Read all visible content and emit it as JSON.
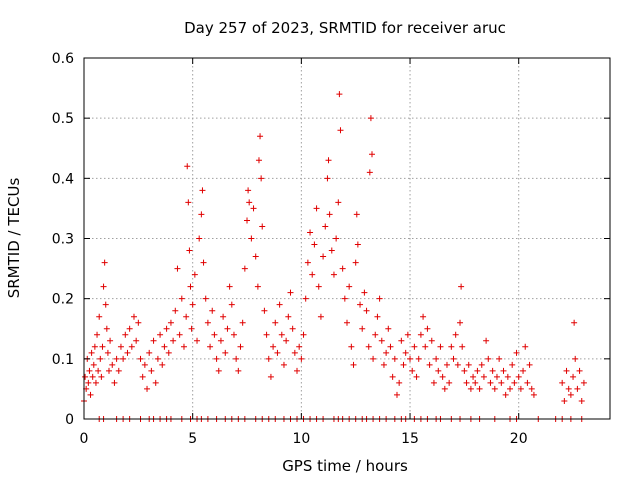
{
  "chart_data": {
    "type": "scatter",
    "title": "Day 257 of 2023, SRMTID for receiver aruc",
    "xlabel": "GPS time / hours",
    "ylabel": "SRMTID / TECUs",
    "xlim": [
      0,
      24.2
    ],
    "ylim": [
      0,
      0.6
    ],
    "x_ticks": [
      0,
      5,
      10,
      15,
      20
    ],
    "x_tick_labels": [
      "0",
      "5",
      "10",
      "15",
      "20"
    ],
    "y_ticks": [
      0,
      0.1,
      0.2,
      0.3,
      0.4,
      0.5,
      0.6
    ],
    "y_tick_labels": [
      "0",
      "0.1",
      "0.2",
      "0.3",
      "0.4",
      "0.5",
      "0.6"
    ],
    "grid": true,
    "marker": "plus",
    "colors": {
      "series": "#e00000"
    },
    "series": [
      {
        "name": "SRMTID",
        "points": [
          [
            0.0,
            0.03
          ],
          [
            0.05,
            0.07
          ],
          [
            0.1,
            0.05
          ],
          [
            0.15,
            0.1
          ],
          [
            0.2,
            0.06
          ],
          [
            0.25,
            0.08
          ],
          [
            0.3,
            0.04
          ],
          [
            0.35,
            0.11
          ],
          [
            0.4,
            0.07
          ],
          [
            0.45,
            0.09
          ],
          [
            0.5,
            0.12
          ],
          [
            0.55,
            0.06
          ],
          [
            0.6,
            0.14
          ],
          [
            0.65,
            0.08
          ],
          [
            0.7,
            0.17
          ],
          [
            0.75,
            0.1
          ],
          [
            0.8,
            0.07
          ],
          [
            0.85,
            0.12
          ],
          [
            0.9,
            0.22
          ],
          [
            0.95,
            0.26
          ],
          [
            1.0,
            0.19
          ],
          [
            1.05,
            0.15
          ],
          [
            1.1,
            0.11
          ],
          [
            1.15,
            0.08
          ],
          [
            1.2,
            0.13
          ],
          [
            1.3,
            0.09
          ],
          [
            1.4,
            0.06
          ],
          [
            1.5,
            0.1
          ],
          [
            1.6,
            0.08
          ],
          [
            1.7,
            0.12
          ],
          [
            1.8,
            0.1
          ],
          [
            1.9,
            0.14
          ],
          [
            2.0,
            0.11
          ],
          [
            2.1,
            0.15
          ],
          [
            2.2,
            0.12
          ],
          [
            2.3,
            0.17
          ],
          [
            2.4,
            0.13
          ],
          [
            2.5,
            0.16
          ],
          [
            2.6,
            0.1
          ],
          [
            2.7,
            0.07
          ],
          [
            2.8,
            0.09
          ],
          [
            2.9,
            0.05
          ],
          [
            3.0,
            0.11
          ],
          [
            3.1,
            0.08
          ],
          [
            3.2,
            0.13
          ],
          [
            3.3,
            0.06
          ],
          [
            3.4,
            0.1
          ],
          [
            3.5,
            0.14
          ],
          [
            3.6,
            0.09
          ],
          [
            3.7,
            0.12
          ],
          [
            3.8,
            0.15
          ],
          [
            3.9,
            0.11
          ],
          [
            4.0,
            0.16
          ],
          [
            4.1,
            0.13
          ],
          [
            4.2,
            0.18
          ],
          [
            4.3,
            0.25
          ],
          [
            4.4,
            0.14
          ],
          [
            4.5,
            0.2
          ],
          [
            4.6,
            0.12
          ],
          [
            4.7,
            0.17
          ],
          [
            4.75,
            0.42
          ],
          [
            4.8,
            0.36
          ],
          [
            4.85,
            0.28
          ],
          [
            4.9,
            0.22
          ],
          [
            4.95,
            0.15
          ],
          [
            5.0,
            0.19
          ],
          [
            5.1,
            0.24
          ],
          [
            5.2,
            0.13
          ],
          [
            5.3,
            0.3
          ],
          [
            5.4,
            0.34
          ],
          [
            5.45,
            0.38
          ],
          [
            5.5,
            0.26
          ],
          [
            5.6,
            0.2
          ],
          [
            5.7,
            0.16
          ],
          [
            5.8,
            0.12
          ],
          [
            5.9,
            0.18
          ],
          [
            6.0,
            0.14
          ],
          [
            6.1,
            0.1
          ],
          [
            6.2,
            0.08
          ],
          [
            6.3,
            0.13
          ],
          [
            6.4,
            0.17
          ],
          [
            6.5,
            0.11
          ],
          [
            6.6,
            0.15
          ],
          [
            6.7,
            0.22
          ],
          [
            6.8,
            0.19
          ],
          [
            6.9,
            0.14
          ],
          [
            7.0,
            0.1
          ],
          [
            7.1,
            0.08
          ],
          [
            7.2,
            0.12
          ],
          [
            7.3,
            0.16
          ],
          [
            7.4,
            0.25
          ],
          [
            7.5,
            0.33
          ],
          [
            7.55,
            0.38
          ],
          [
            7.6,
            0.36
          ],
          [
            7.7,
            0.3
          ],
          [
            7.8,
            0.35
          ],
          [
            7.9,
            0.27
          ],
          [
            8.0,
            0.22
          ],
          [
            8.05,
            0.43
          ],
          [
            8.1,
            0.47
          ],
          [
            8.15,
            0.4
          ],
          [
            8.2,
            0.32
          ],
          [
            8.3,
            0.18
          ],
          [
            8.4,
            0.14
          ],
          [
            8.5,
            0.1
          ],
          [
            8.6,
            0.07
          ],
          [
            8.7,
            0.12
          ],
          [
            8.8,
            0.16
          ],
          [
            8.9,
            0.11
          ],
          [
            9.0,
            0.19
          ],
          [
            9.1,
            0.14
          ],
          [
            9.2,
            0.09
          ],
          [
            9.3,
            0.13
          ],
          [
            9.4,
            0.17
          ],
          [
            9.5,
            0.21
          ],
          [
            9.6,
            0.15
          ],
          [
            9.7,
            0.11
          ],
          [
            9.8,
            0.08
          ],
          [
            9.9,
            0.12
          ],
          [
            10.0,
            0.1
          ],
          [
            10.1,
            0.14
          ],
          [
            10.2,
            0.2
          ],
          [
            10.3,
            0.26
          ],
          [
            10.4,
            0.31
          ],
          [
            10.5,
            0.24
          ],
          [
            10.6,
            0.29
          ],
          [
            10.7,
            0.35
          ],
          [
            10.8,
            0.22
          ],
          [
            10.9,
            0.17
          ],
          [
            11.0,
            0.27
          ],
          [
            11.1,
            0.32
          ],
          [
            11.2,
            0.4
          ],
          [
            11.25,
            0.43
          ],
          [
            11.3,
            0.34
          ],
          [
            11.4,
            0.28
          ],
          [
            11.5,
            0.24
          ],
          [
            11.6,
            0.3
          ],
          [
            11.7,
            0.36
          ],
          [
            11.75,
            0.54
          ],
          [
            11.8,
            0.48
          ],
          [
            11.9,
            0.25
          ],
          [
            12.0,
            0.2
          ],
          [
            12.1,
            0.16
          ],
          [
            12.2,
            0.22
          ],
          [
            12.3,
            0.12
          ],
          [
            12.4,
            0.09
          ],
          [
            12.5,
            0.26
          ],
          [
            12.55,
            0.34
          ],
          [
            12.6,
            0.29
          ],
          [
            12.7,
            0.19
          ],
          [
            12.8,
            0.15
          ],
          [
            12.9,
            0.21
          ],
          [
            13.0,
            0.18
          ],
          [
            13.1,
            0.12
          ],
          [
            13.15,
            0.41
          ],
          [
            13.2,
            0.5
          ],
          [
            13.25,
            0.44
          ],
          [
            13.3,
            0.1
          ],
          [
            13.4,
            0.14
          ],
          [
            13.5,
            0.17
          ],
          [
            13.6,
            0.2
          ],
          [
            13.7,
            0.13
          ],
          [
            13.8,
            0.09
          ],
          [
            13.9,
            0.11
          ],
          [
            14.0,
            0.15
          ],
          [
            14.1,
            0.12
          ],
          [
            14.2,
            0.07
          ],
          [
            14.3,
            0.1
          ],
          [
            14.4,
            0.04
          ],
          [
            14.5,
            0.06
          ],
          [
            14.6,
            0.13
          ],
          [
            14.7,
            0.09
          ],
          [
            14.8,
            0.11
          ],
          [
            14.9,
            0.14
          ],
          [
            15.0,
            0.1
          ],
          [
            15.1,
            0.08
          ],
          [
            15.2,
            0.12
          ],
          [
            15.3,
            0.07
          ],
          [
            15.4,
            0.1
          ],
          [
            15.5,
            0.14
          ],
          [
            15.6,
            0.17
          ],
          [
            15.7,
            0.12
          ],
          [
            15.8,
            0.15
          ],
          [
            15.9,
            0.09
          ],
          [
            16.0,
            0.13
          ],
          [
            16.1,
            0.06
          ],
          [
            16.2,
            0.1
          ],
          [
            16.3,
            0.08
          ],
          [
            16.4,
            0.12
          ],
          [
            16.5,
            0.07
          ],
          [
            16.6,
            0.05
          ],
          [
            16.7,
            0.09
          ],
          [
            16.8,
            0.06
          ],
          [
            16.9,
            0.12
          ],
          [
            17.0,
            0.1
          ],
          [
            17.1,
            0.14
          ],
          [
            17.2,
            0.09
          ],
          [
            17.3,
            0.16
          ],
          [
            17.35,
            0.22
          ],
          [
            17.4,
            0.12
          ],
          [
            17.5,
            0.08
          ],
          [
            17.6,
            0.06
          ],
          [
            17.7,
            0.09
          ],
          [
            17.8,
            0.05
          ],
          [
            17.9,
            0.07
          ],
          [
            18.0,
            0.06
          ],
          [
            18.1,
            0.08
          ],
          [
            18.2,
            0.05
          ],
          [
            18.3,
            0.09
          ],
          [
            18.4,
            0.07
          ],
          [
            18.5,
            0.13
          ],
          [
            18.6,
            0.1
          ],
          [
            18.7,
            0.06
          ],
          [
            18.8,
            0.08
          ],
          [
            18.9,
            0.05
          ],
          [
            19.0,
            0.07
          ],
          [
            19.1,
            0.1
          ],
          [
            19.2,
            0.06
          ],
          [
            19.3,
            0.08
          ],
          [
            19.4,
            0.04
          ],
          [
            19.5,
            0.07
          ],
          [
            19.6,
            0.05
          ],
          [
            19.7,
            0.09
          ],
          [
            19.8,
            0.06
          ],
          [
            19.9,
            0.11
          ],
          [
            20.0,
            0.07
          ],
          [
            20.1,
            0.05
          ],
          [
            20.2,
            0.08
          ],
          [
            20.3,
            0.12
          ],
          [
            20.4,
            0.06
          ],
          [
            20.5,
            0.09
          ],
          [
            20.6,
            0.05
          ],
          [
            20.7,
            0.04
          ],
          [
            22.0,
            0.06
          ],
          [
            22.1,
            0.03
          ],
          [
            22.2,
            0.08
          ],
          [
            22.3,
            0.05
          ],
          [
            22.4,
            0.04
          ],
          [
            22.5,
            0.07
          ],
          [
            22.55,
            0.16
          ],
          [
            22.6,
            0.1
          ],
          [
            22.7,
            0.05
          ],
          [
            22.8,
            0.08
          ],
          [
            22.9,
            0.03
          ],
          [
            23.0,
            0.06
          ]
        ]
      }
    ],
    "zero_points_x": [
      0.7,
      0.9,
      1.5,
      1.8,
      2.1,
      2.6,
      3.0,
      3.2,
      3.5,
      3.8,
      4.0,
      4.5,
      4.9,
      5.2,
      5.4,
      5.7,
      6.1,
      6.5,
      6.8,
      7.1,
      7.4,
      7.9,
      8.2,
      8.5,
      8.8,
      9.2,
      9.5,
      9.8,
      10.1,
      10.4,
      10.7,
      11.0,
      11.5,
      11.7,
      11.9,
      12.2,
      12.5,
      12.8,
      13.0,
      13.3,
      13.6,
      13.9,
      14.3,
      14.6,
      14.8,
      15.2,
      15.5,
      15.8,
      16.2,
      16.4,
      16.9,
      17.3,
      17.8,
      18.2,
      18.9,
      19.6,
      19.9,
      20.9,
      21.7,
      22.0,
      22.4,
      22.9
    ]
  }
}
